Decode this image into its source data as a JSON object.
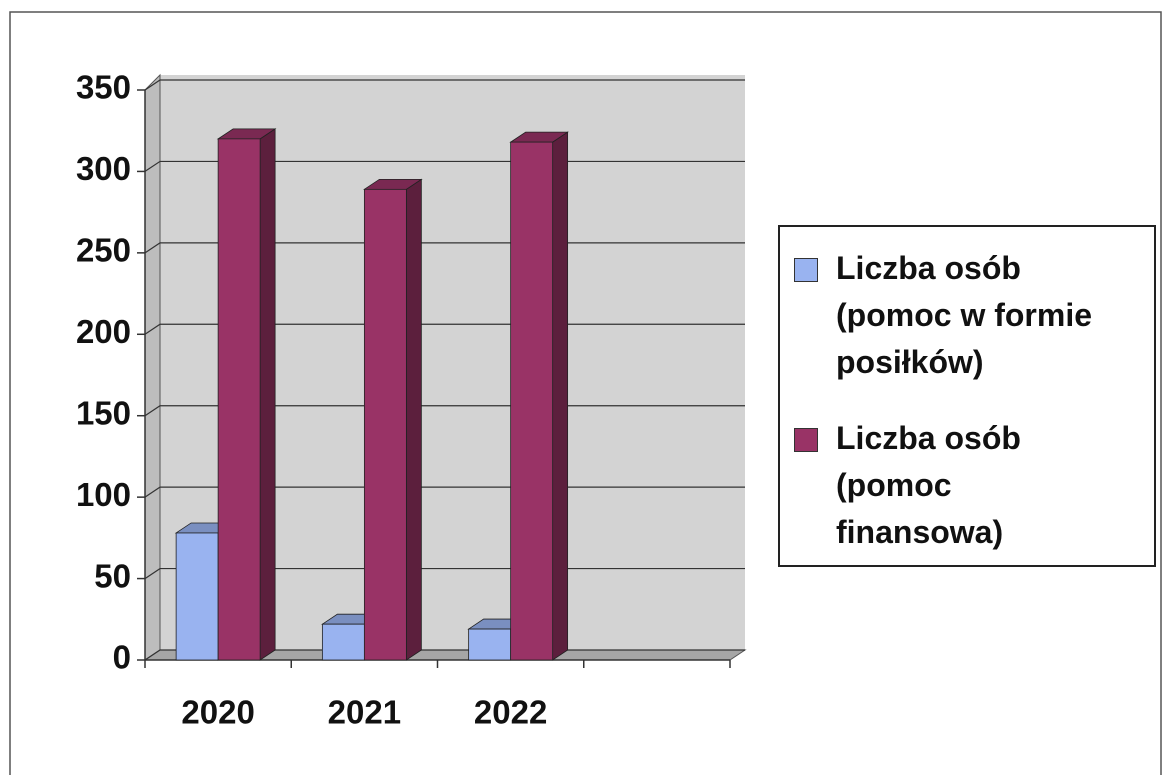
{
  "chart_data": {
    "type": "bar3d",
    "categories": [
      "2020",
      "2021",
      "2022",
      null
    ],
    "series": [
      {
        "name": "Liczba osób (pomoc w formie posiłków)",
        "color": "#99b3f0",
        "values": [
          78,
          22,
          19,
          null
        ]
      },
      {
        "name": "Liczba osób (pomoc finansowa)",
        "color": "#993366",
        "values": [
          320,
          289,
          318,
          null
        ]
      }
    ],
    "ylim": [
      0,
      350
    ],
    "yticks": [
      0,
      50,
      100,
      150,
      200,
      250,
      300,
      350
    ],
    "grid": true,
    "legend": "right"
  }
}
